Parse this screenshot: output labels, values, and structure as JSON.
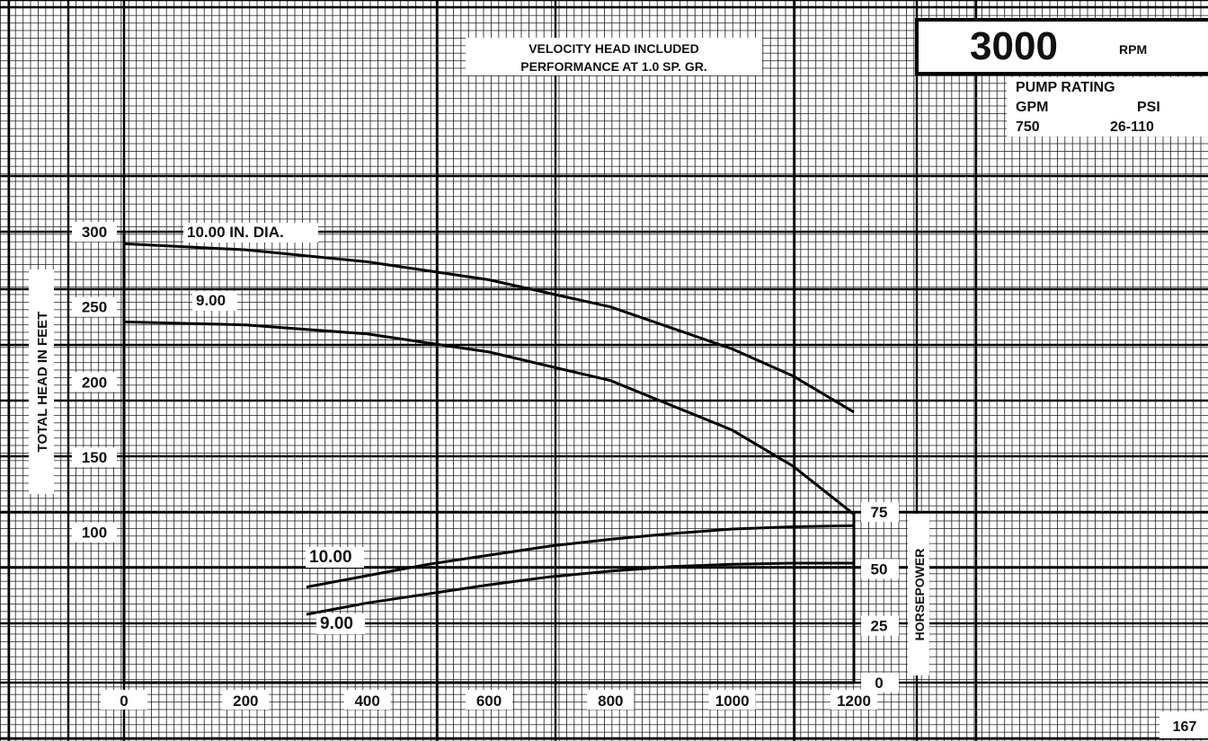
{
  "header": {
    "note_line1": "VELOCITY HEAD INCLUDED",
    "note_line2": "PERFORMANCE AT 1.0 SP. GR.",
    "rpm_value": "3000",
    "rpm_unit": "RPM",
    "rating_title": "PUMP RATING",
    "rating_col1_header": "GPM",
    "rating_col2_header": "PSI",
    "rating_col1_value": "750",
    "rating_col2_value": "26-110"
  },
  "page_number": "167",
  "chart_data": [
    {
      "type": "line",
      "xlabel": "",
      "ylabel": "TOTAL HEAD IN FEET",
      "xlim": [
        0,
        1200
      ],
      "ylim": [
        0,
        300
      ],
      "x_ticks": [
        0,
        200,
        400,
        600,
        800,
        1000,
        1200
      ],
      "x_tick_labels": [
        "0",
        "200",
        "400",
        "600",
        "800",
        "1000",
        "1200"
      ],
      "y_ticks": [
        100,
        150,
        200,
        250,
        300
      ],
      "y_tick_labels": [
        "100",
        "150",
        "200",
        "250",
        "300"
      ],
      "grid": true,
      "series": [
        {
          "name": "10.00 IN. DIA.",
          "x": [
            0,
            200,
            400,
            600,
            800,
            1000,
            1100,
            1200
          ],
          "y": [
            292,
            288,
            280,
            268,
            250,
            222,
            204,
            180
          ]
        },
        {
          "name": "9.00",
          "x": [
            0,
            200,
            400,
            600,
            800,
            1000,
            1100,
            1200
          ],
          "y": [
            240,
            238,
            232,
            220,
            201,
            168,
            144,
            112
          ]
        }
      ]
    },
    {
      "type": "line",
      "ylabel": "HORSEPOWER",
      "xlim": [
        0,
        1200
      ],
      "ylim": [
        0,
        75
      ],
      "y_ticks": [
        0,
        25,
        50,
        75
      ],
      "y_tick_labels": [
        "0",
        "25",
        "50",
        "75"
      ],
      "grid": true,
      "series": [
        {
          "name": "10.00",
          "x": [
            300,
            400,
            500,
            600,
            700,
            800,
            900,
            1000,
            1100,
            1200
          ],
          "y": [
            42,
            47,
            52,
            56,
            60,
            63,
            65.5,
            67.5,
            68.5,
            69
          ]
        },
        {
          "name": "9.00",
          "x": [
            300,
            400,
            500,
            600,
            700,
            800,
            900,
            1000,
            1100,
            1200
          ],
          "y": [
            30,
            35,
            39,
            43,
            46.5,
            49,
            51,
            52,
            52.5,
            52.5
          ]
        }
      ]
    }
  ]
}
